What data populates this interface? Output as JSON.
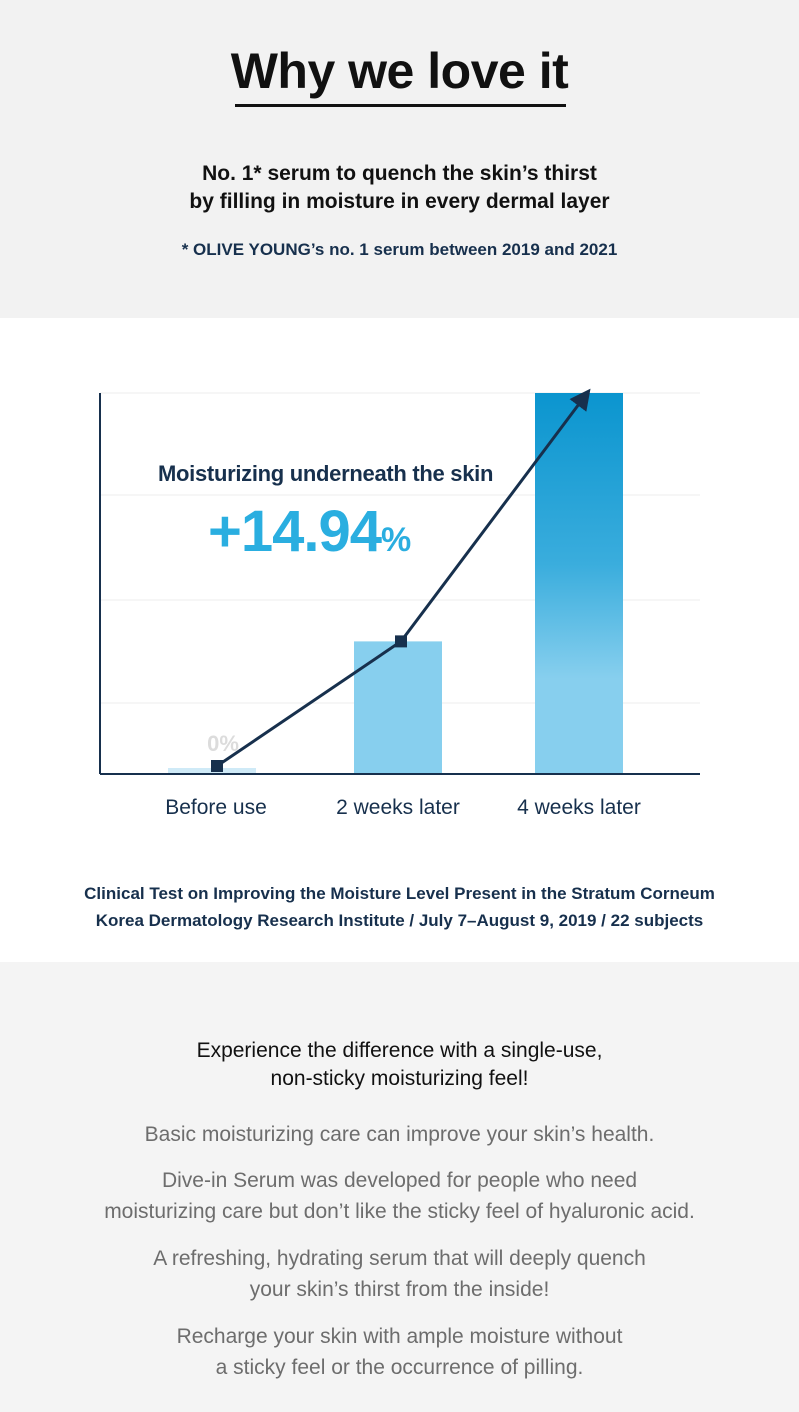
{
  "header": {
    "title": "Why we love it",
    "headline_line1": "No. 1* serum to quench the skin’s thirst",
    "headline_line2": "by filling in moisture in every dermal layer",
    "footnote": "* OLIVE YOUNG’s no. 1 serum between 2019 and 2021"
  },
  "chart_data": {
    "type": "bar",
    "title": "Moisturizing underneath the skin",
    "highlight_value": "+14.94",
    "highlight_unit": "%",
    "categories": [
      "Before use",
      "2 weeks later",
      "4 weeks later"
    ],
    "values": [
      0,
      5.2,
      14.94
    ],
    "zero_label": "0%",
    "ylim": [
      0,
      14.94
    ],
    "grid": true,
    "xlabel": "",
    "ylabel": "",
    "colors": {
      "bar_light": "#87cfee",
      "bar_base": "#cfeaf7",
      "bar_dark": "#0b95cf",
      "line": "#17304d",
      "axis": "#17304d",
      "highlight": "#2aaee0",
      "grid": "#ececec"
    }
  },
  "source": {
    "line1": "Clinical Test on Improving the Moisture Level Present in the Stratum Corneum",
    "line2": "Korea Dermatology Research Institute / July 7–August 9, 2019 / 22 subjects"
  },
  "experience": {
    "headline_line1": "Experience the difference with a single-use,",
    "headline_line2": "non-sticky moisturizing feel!",
    "p1": "Basic moisturizing care can improve your skin’s health.",
    "p2_line1": "Dive-in Serum was developed for people who need",
    "p2_line2": "moisturizing care but don’t like the sticky feel of hyaluronic acid.",
    "p3_line1": "A refreshing, hydrating serum that will deeply quench",
    "p3_line2": "your skin’s thirst from the inside!",
    "p4_line1": "Recharge your skin with ample moisture without",
    "p4_line2": "a sticky feel or the occurrence of pilling."
  }
}
